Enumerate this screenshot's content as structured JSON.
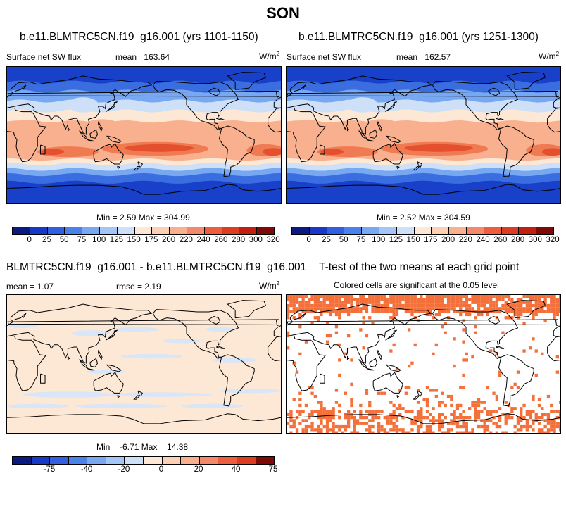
{
  "title": "SON",
  "panel_left": {
    "title": "b.e11.BLMTRC5CN.f19_g16.001 (yrs 1101-1150)",
    "variable": "Surface net SW flux",
    "mean_label": "mean= 163.64",
    "units": "W/m",
    "units_sup": "2",
    "minmax": "Min =   2.59 Max = 304.99"
  },
  "panel_right": {
    "title": "b.e11.BLMTRC5CN.f19_g16.001 (yrs 1251-1300)",
    "variable": "Surface net SW flux",
    "mean_label": "mean= 162.57",
    "units": "W/m",
    "units_sup": "2",
    "minmax": "Min =   2.52 Max = 304.59"
  },
  "panel_diff": {
    "title": "BLMTRC5CN.f19_g16.001 - b.e11.BLMTRC5CN.f19_g16.001",
    "mean_label": "mean =   1.07",
    "rmse_label": "rmse =   2.19",
    "units": "W/m",
    "units_sup": "2",
    "minmax": "Min =  -6.71 Max =  14.38"
  },
  "panel_ttest": {
    "title": "T-test of the two means at each grid point",
    "subtitle": "Colored cells are significant at the 0.05 level",
    "cell_color": "#f4703a"
  },
  "colorbar_abs": {
    "colors": [
      "#0a1a80",
      "#1838c8",
      "#3060e0",
      "#4a82ec",
      "#78a8f2",
      "#a4c6f6",
      "#cde0f8",
      "#fde8d6",
      "#fbd0b4",
      "#f8b08e",
      "#f4886a",
      "#ec5e3e",
      "#dc3c20",
      "#c02010",
      "#7e0a06"
    ],
    "ticks": [
      "0",
      "25",
      "50",
      "75",
      "100",
      "125",
      "150",
      "175",
      "200",
      "220",
      "240",
      "260",
      "280",
      "300",
      "320"
    ]
  },
  "colorbar_diff": {
    "colors": [
      "#0a1a80",
      "#1838c8",
      "#3060e0",
      "#4a82ec",
      "#78a8f2",
      "#a4c6f6",
      "#cde0f8",
      "#fde8d6",
      "#fbd0b4",
      "#f8b08e",
      "#f4886a",
      "#ec5e3e",
      "#dc3c20",
      "#7e0a06"
    ],
    "ticks": [
      "-75",
      "-40",
      "-20",
      "0",
      "20",
      "40",
      "75"
    ]
  },
  "map_colors": {
    "dark_blue": "#1840c8",
    "blue": "#3a6ee0",
    "mid_blue": "#78a8f2",
    "light_blue": "#cde0f8",
    "peach": "#fde8d6",
    "light_orange": "#f8b08e",
    "orange": "#f07a52",
    "red_orange": "#e4502e",
    "diff_bg": "#fde8d6",
    "diff_blue": "#d8e6f8"
  }
}
